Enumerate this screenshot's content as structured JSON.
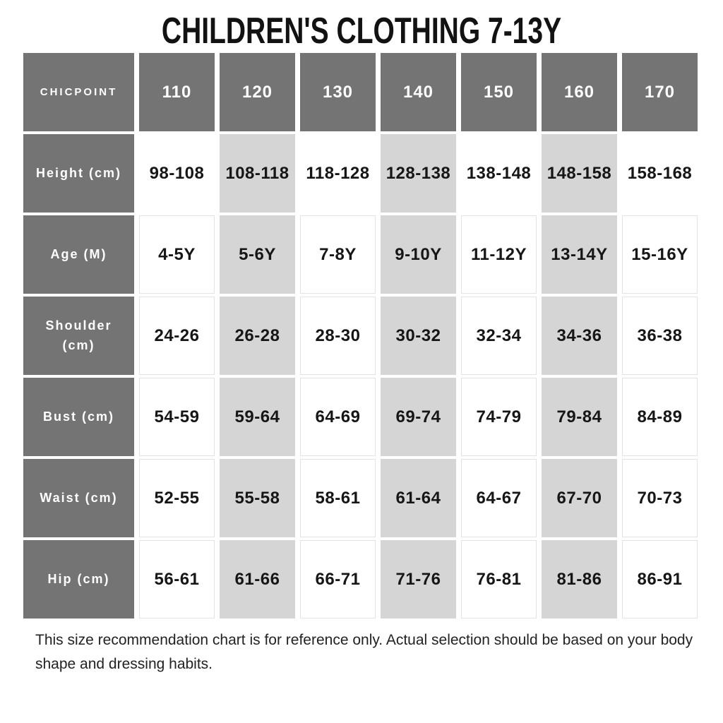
{
  "title": "CHILDREN'S CLOTHING 7-13Y",
  "chart_data": {
    "type": "table",
    "brand": "CHICPOINT",
    "columns": [
      "110",
      "120",
      "130",
      "140",
      "150",
      "160",
      "170"
    ],
    "rows": [
      {
        "label": "Height (cm)",
        "values": [
          "98-108",
          "108-118",
          "118-128",
          "128-138",
          "138-148",
          "148-158",
          "158-168"
        ]
      },
      {
        "label": "Age (M)",
        "values": [
          "4-5Y",
          "5-6Y",
          "7-8Y",
          "9-10Y",
          "11-12Y",
          "13-14Y",
          "15-16Y"
        ]
      },
      {
        "label": "Shoulder (cm)",
        "values": [
          "24-26",
          "26-28",
          "28-30",
          "30-32",
          "32-34",
          "34-36",
          "36-38"
        ]
      },
      {
        "label": "Bust (cm)",
        "values": [
          "54-59",
          "59-64",
          "64-69",
          "69-74",
          "74-79",
          "79-84",
          "84-89"
        ]
      },
      {
        "label": "Waist (cm)",
        "values": [
          "52-55",
          "55-58",
          "58-61",
          "61-64",
          "64-67",
          "67-70",
          "70-73"
        ]
      },
      {
        "label": "Hip (cm)",
        "values": [
          "56-61",
          "61-66",
          "66-71",
          "71-76",
          "76-81",
          "81-86",
          "86-91"
        ]
      }
    ]
  },
  "footer": "This size recommendation chart is for reference only. Actual selection should be based on your body shape and dressing habits.",
  "colors": {
    "header_bg": "#747474",
    "row_label_bg": "#747474",
    "alt_column_bg": "#d5d5d5",
    "cell_bg": "#ffffff",
    "cell_border": "#e3e3e3",
    "title_text": "#121212",
    "cell_text": "#161616",
    "header_text": "#ffffff",
    "footer_text": "#222222"
  }
}
